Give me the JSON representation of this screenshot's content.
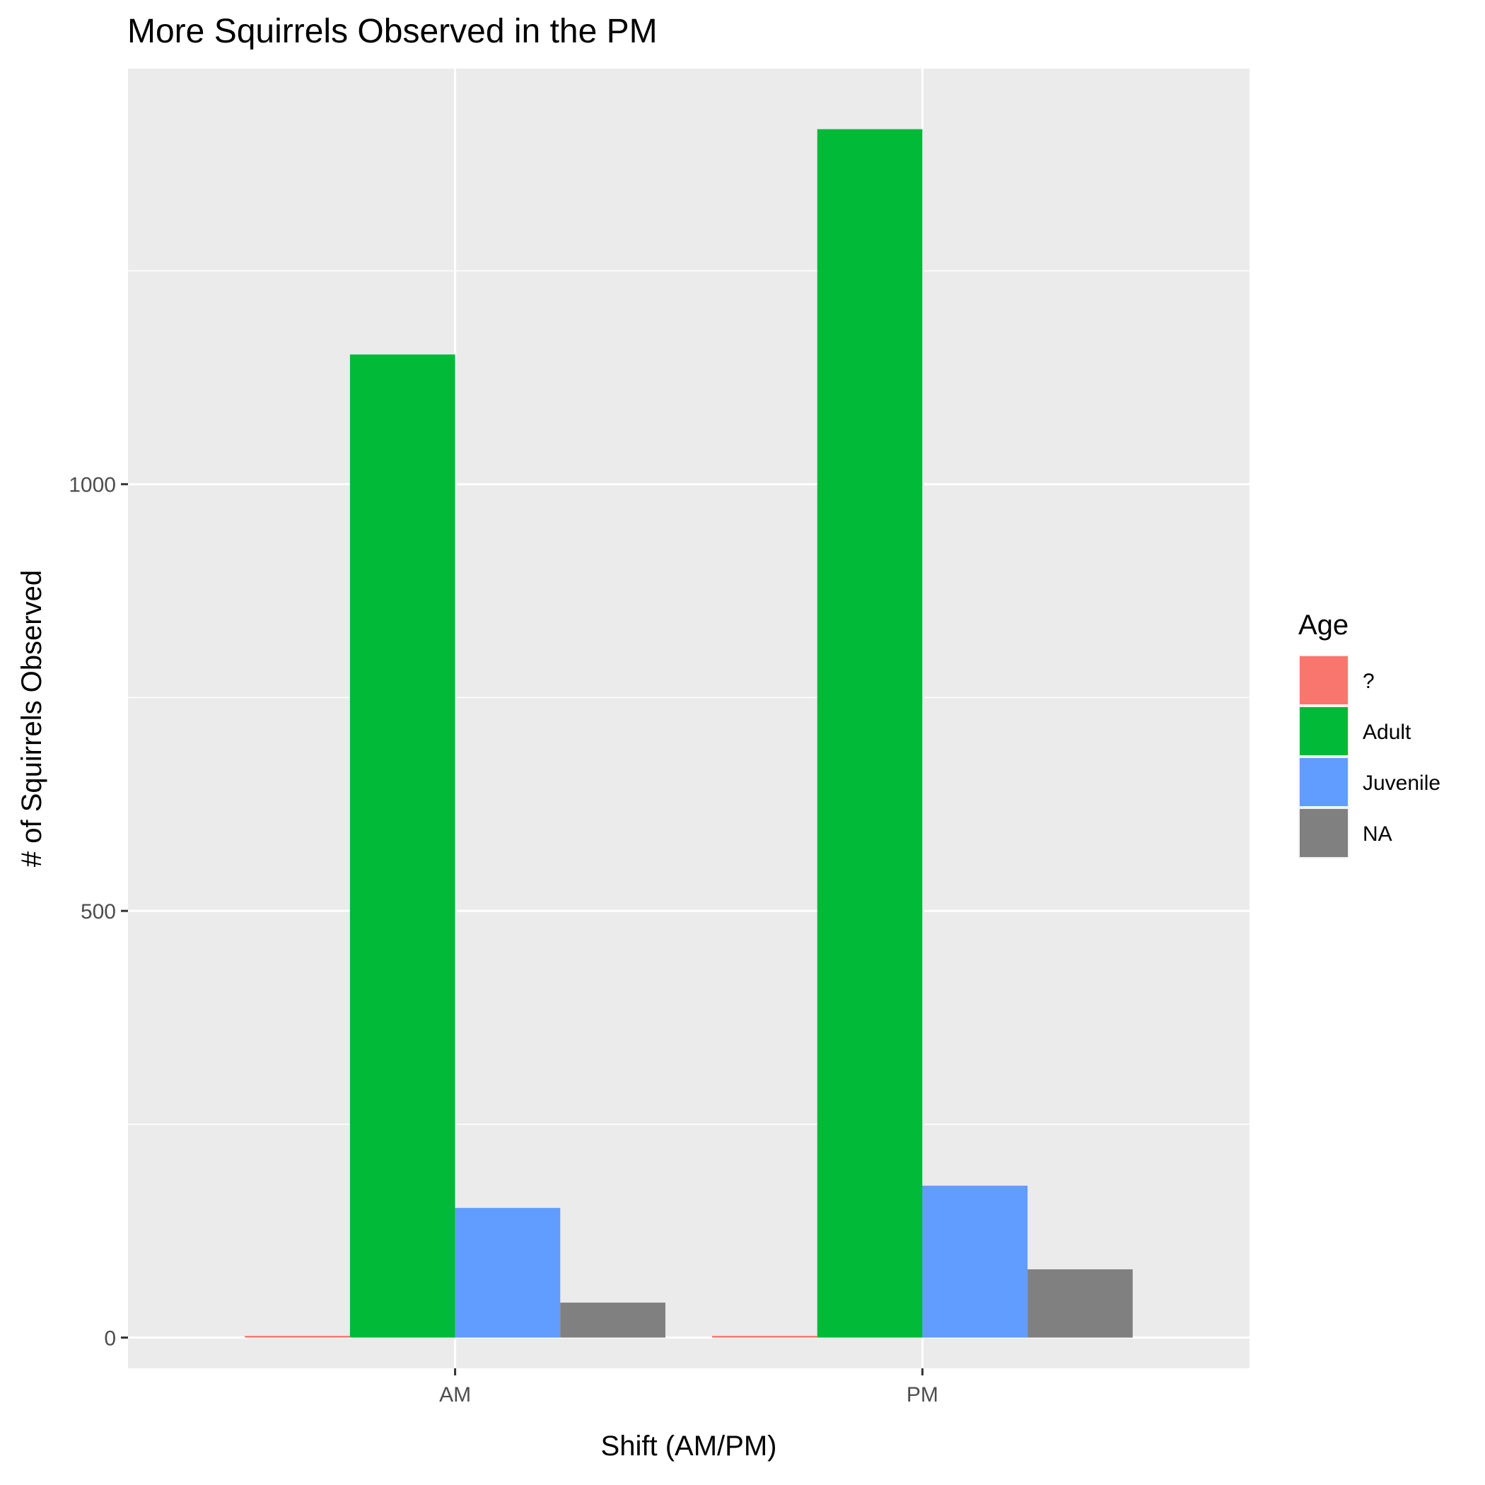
{
  "chart_data": {
    "type": "bar",
    "title": "More Squirrels Observed in the PM",
    "xlabel": "Shift (AM/PM)",
    "ylabel": "# of Squirrels Observed",
    "categories": [
      "AM",
      "PM"
    ],
    "series": [
      {
        "name": "?",
        "color": "#F8766D",
        "values": [
          2,
          2
        ]
      },
      {
        "name": "Adult",
        "color": "#00BA38",
        "values": [
          1152,
          1416
        ]
      },
      {
        "name": "Juvenile",
        "color": "#619CFF",
        "values": [
          152,
          178
        ]
      },
      {
        "name": "NA",
        "color": "#808080",
        "values": [
          41,
          80
        ]
      }
    ],
    "ylim": [
      -36,
      1487
    ],
    "yticks": [
      0,
      500,
      1000
    ],
    "ytick_labels": [
      "0",
      "500",
      "1000"
    ],
    "grid": true,
    "legend": {
      "title": "Age",
      "position": "right"
    },
    "panel_background": "#EBEBEB",
    "gridline_color": "#FFFFFF"
  }
}
